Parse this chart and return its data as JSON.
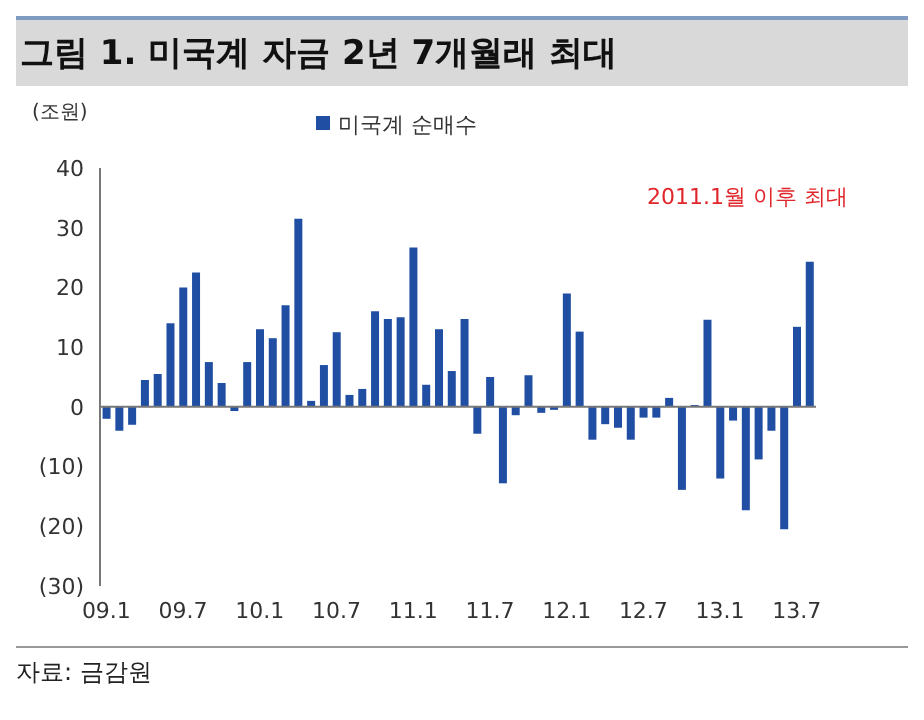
{
  "chart_data": {
    "type": "bar",
    "title": "그림 1.  미국계 자금 2년 7개월래 최대",
    "ylabel": "(조원)",
    "categories": [
      "09.1",
      null,
      null,
      null,
      null,
      null,
      "09.7",
      null,
      null,
      null,
      null,
      null,
      "10.1",
      null,
      null,
      null,
      null,
      null,
      "10.7",
      null,
      null,
      null,
      null,
      null,
      "11.1",
      null,
      null,
      null,
      null,
      null,
      "11.7",
      null,
      null,
      null,
      null,
      null,
      "12.1",
      null,
      null,
      null,
      null,
      null,
      "12.7",
      null,
      null,
      null,
      null,
      null,
      "13.1",
      null,
      null,
      null,
      null,
      null,
      "13.7",
      null
    ],
    "series": [
      {
        "name": "미국계 순매수",
        "color": "#1f4ea3",
        "values": [
          -2,
          -4,
          -3,
          4.5,
          5.5,
          14,
          20,
          22.5,
          7.5,
          4,
          -0.7,
          7.5,
          13,
          11.5,
          17,
          31.5,
          1,
          7,
          12.5,
          2,
          3,
          16,
          14.7,
          15,
          26.7,
          3.7,
          13,
          6,
          14.7,
          -4.5,
          5,
          -12.8,
          -1.4,
          5.3,
          -1,
          -0.5,
          19,
          12.6,
          -5.5,
          -2.9,
          -3.5,
          -5.5,
          -1.8,
          -1.8,
          1.5,
          -13.9,
          0.3,
          14.6,
          -12,
          -2.3,
          -17.3,
          -8.8,
          -4,
          -20.5,
          13.4,
          24.3
        ]
      }
    ],
    "ylim": [
      -30,
      40
    ],
    "yticks": [
      {
        "value": -30,
        "label": "(30)"
      },
      {
        "value": -20,
        "label": "(20)"
      },
      {
        "value": -10,
        "label": "(10)"
      },
      0,
      10,
      20,
      30,
      40
    ],
    "legend": "top",
    "annotations": [
      "2011.1월 이후 최대",
      "자료: 금감원"
    ]
  }
}
